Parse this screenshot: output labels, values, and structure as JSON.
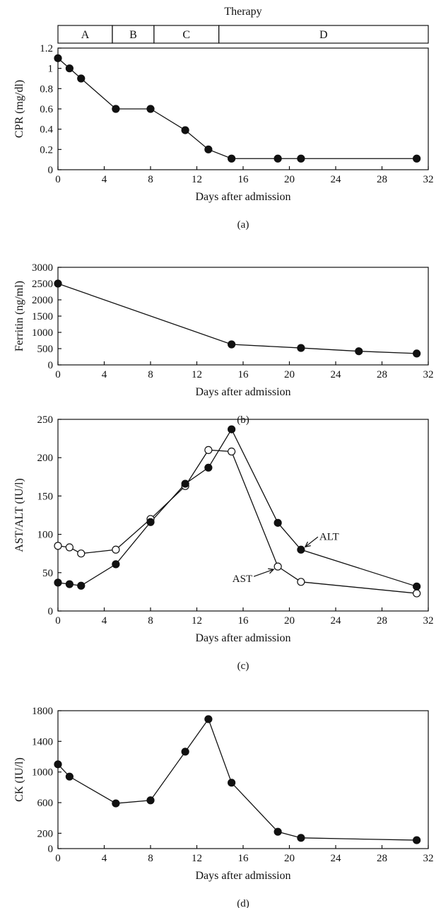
{
  "therapy": {
    "title": "Therapy",
    "phases": [
      {
        "label": "A",
        "start": 0,
        "end": 4.7
      },
      {
        "label": "B",
        "start": 4.7,
        "end": 8.3
      },
      {
        "label": "C",
        "start": 8.3,
        "end": 13.9
      },
      {
        "label": "D",
        "start": 13.9,
        "end": 32
      }
    ]
  },
  "chart_data": [
    {
      "id": "a",
      "type": "line",
      "panel_label": "(a)",
      "xlabel": "Days after admission",
      "ylabel": "CPR (mg/dl)",
      "xlim": [
        0,
        32
      ],
      "ylim": [
        0,
        1.2
      ],
      "xticks": [
        0,
        4,
        8,
        12,
        16,
        20,
        24,
        28,
        32
      ],
      "yticks": [
        0,
        0.2,
        0.4,
        0.6,
        0.8,
        1,
        1.2
      ],
      "ytick_labels": [
        "0",
        "0.2",
        "0.4",
        "0.6",
        "0.8",
        "1",
        "1.2"
      ],
      "grid": false,
      "series": [
        {
          "marker": "filled",
          "x": [
            0,
            1,
            2,
            5,
            8,
            11,
            13,
            15,
            19,
            21,
            31
          ],
          "y": [
            1.1,
            1.0,
            0.9,
            0.6,
            0.6,
            0.39,
            0.2,
            0.11,
            0.11,
            0.11,
            0.11
          ]
        }
      ]
    },
    {
      "id": "b",
      "type": "line",
      "panel_label": "(b)",
      "xlabel": "Days after admission",
      "ylabel": "Ferritin (ng/ml)",
      "xlim": [
        0,
        32
      ],
      "ylim": [
        0,
        3000
      ],
      "xticks": [
        0,
        4,
        8,
        12,
        16,
        20,
        24,
        28,
        32
      ],
      "yticks": [
        0,
        500,
        1000,
        1500,
        2000,
        2500,
        3000
      ],
      "ytick_labels": [
        "0",
        "500",
        "1000",
        "1500",
        "2000",
        "2500",
        "3000"
      ],
      "grid": false,
      "series": [
        {
          "marker": "filled",
          "x": [
            0,
            15,
            21,
            26,
            31
          ],
          "y": [
            2500,
            630,
            520,
            420,
            350
          ]
        }
      ]
    },
    {
      "id": "c",
      "type": "line",
      "panel_label": "(c)",
      "xlabel": "Days after admission",
      "ylabel": "AST/ALT (IU/l)",
      "xlim": [
        0,
        32
      ],
      "ylim": [
        0,
        250
      ],
      "xticks": [
        0,
        4,
        8,
        12,
        16,
        20,
        24,
        28,
        32
      ],
      "yticks": [
        0,
        50,
        100,
        150,
        200,
        250
      ],
      "ytick_labels": [
        "0",
        "50",
        "100",
        "150",
        "200",
        "250"
      ],
      "grid": false,
      "series": [
        {
          "name": "AST",
          "marker": "open",
          "x": [
            0,
            1,
            2,
            5,
            8,
            11,
            13,
            15,
            19,
            21,
            31
          ],
          "y": [
            85,
            83,
            75,
            80,
            120,
            163,
            210,
            208,
            58,
            38,
            23
          ]
        },
        {
          "name": "ALT",
          "marker": "filled",
          "x": [
            0,
            1,
            2,
            5,
            8,
            11,
            13,
            15,
            19,
            21,
            31
          ],
          "y": [
            37,
            35,
            33,
            61,
            116,
            166,
            187,
            237,
            115,
            80,
            32
          ]
        }
      ],
      "annotations": [
        {
          "text": "ALT",
          "series": "ALT",
          "x": 21,
          "y": 80,
          "arrow": "from-right"
        },
        {
          "text": "AST",
          "series": "AST",
          "x": 19,
          "y": 58,
          "arrow": "from-left"
        }
      ]
    },
    {
      "id": "d",
      "type": "line",
      "panel_label": "(d)",
      "xlabel": "Days after admission",
      "ylabel": "CK (IU/l)",
      "xlim": [
        0,
        32
      ],
      "ylim": [
        0,
        1800
      ],
      "xticks": [
        0,
        4,
        8,
        12,
        16,
        20,
        24,
        28,
        32
      ],
      "yticks": [
        0,
        200,
        600,
        1000,
        1400,
        1800
      ],
      "ytick_labels": [
        "0",
        "200",
        "600",
        "1000",
        "1400",
        "1800"
      ],
      "grid": false,
      "series": [
        {
          "marker": "filled",
          "x": [
            0,
            1,
            5,
            8,
            11,
            13,
            15,
            19,
            21,
            31
          ],
          "y": [
            1100,
            940,
            590,
            630,
            1265,
            1690,
            860,
            220,
            140,
            110
          ]
        }
      ]
    }
  ]
}
